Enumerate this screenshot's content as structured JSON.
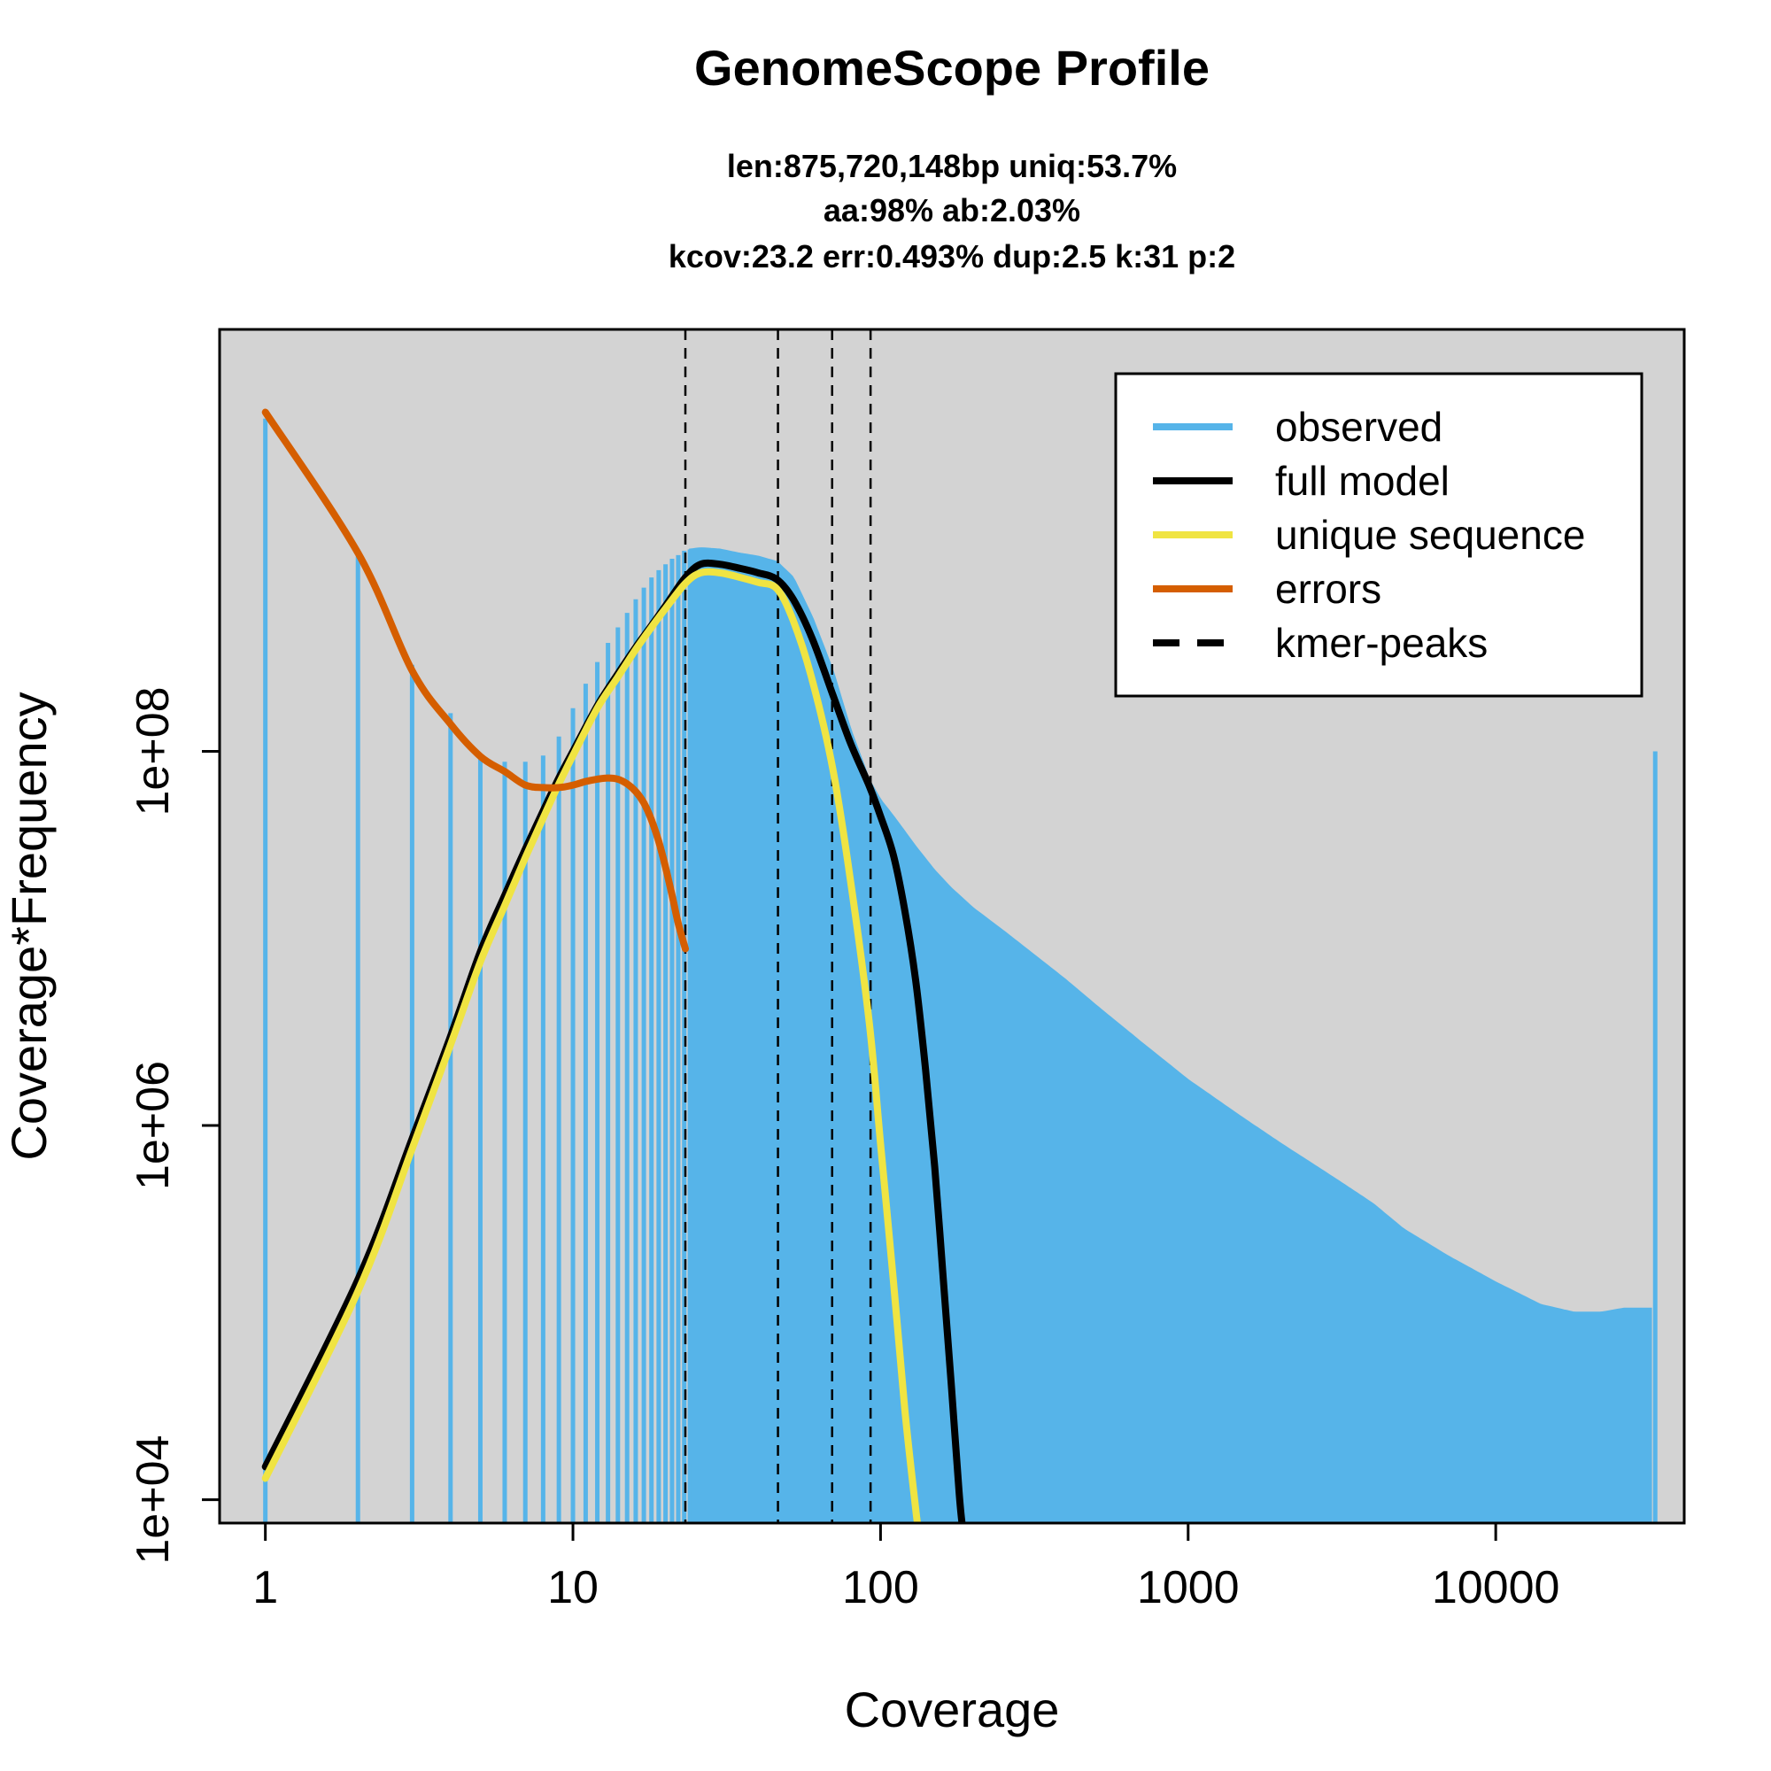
{
  "chart_data": {
    "type": "line",
    "title": "GenomeScope Profile",
    "subtitle_lines": [
      "len:875,720,148bp uniq:53.7%",
      "aa:98% ab:2.03%",
      "kcov:23.2 err:0.493%  dup:2.5  k:31 p:2"
    ],
    "xlabel": "Coverage",
    "ylabel": "Coverage*Frequency",
    "x_scale": "log",
    "y_scale": "log",
    "xlim": [
      0.71,
      41000
    ],
    "ylim": [
      7500,
      18000000000.0
    ],
    "x_ticks": [
      1,
      10,
      100,
      1000,
      10000
    ],
    "x_tick_labels": [
      "1",
      "10",
      "100",
      "1000",
      "10000"
    ],
    "y_ticks": [
      10000,
      1000000,
      100000000
    ],
    "y_tick_labels": [
      "1e+04",
      "1e+06",
      "1e+08"
    ],
    "plot_background": "#d3d3d3",
    "legend_position": "top-right",
    "legend": [
      {
        "label": "observed",
        "color": "#56b4e9",
        "style": "solid"
      },
      {
        "label": "full model",
        "color": "#000000",
        "style": "solid"
      },
      {
        "label": "unique sequence",
        "color": "#f0e442",
        "style": "solid"
      },
      {
        "label": "errors",
        "color": "#d55e00",
        "style": "solid"
      },
      {
        "label": "kmer-peaks",
        "color": "#000000",
        "style": "dashed"
      }
    ],
    "kmer_peaks": [
      23.2,
      46.4,
      69.6,
      92.8
    ],
    "series": [
      {
        "name": "observed",
        "kind": "histogram",
        "color": "#56b4e9",
        "x": [
          1,
          2,
          3,
          4,
          5,
          6,
          7,
          8,
          9,
          10,
          11,
          12,
          13,
          14,
          15,
          16,
          17,
          18,
          19,
          20,
          21,
          22,
          23,
          24,
          26,
          30,
          35,
          40,
          46,
          52,
          60,
          70,
          80,
          92,
          100,
          110,
          130,
          150,
          170,
          200,
          250,
          300,
          400,
          500,
          700,
          1000,
          1500,
          2000,
          3000,
          4000,
          5000,
          7000,
          10000,
          14000,
          18000,
          22000,
          26000,
          29000,
          32000,
          33000
        ],
        "y": [
          6000000000.0,
          1100000000.0,
          290000000.0,
          160000000.0,
          95000000.0,
          88000000.0,
          88000000.0,
          95000000.0,
          120000000.0,
          170000000.0,
          230000000.0,
          300000000.0,
          380000000.0,
          460000000.0,
          550000000.0,
          650000000.0,
          750000000.0,
          850000000.0,
          930000000.0,
          1000000000.0,
          1070000000.0,
          1120000000.0,
          1180000000.0,
          1200000000.0,
          1220000000.0,
          1200000000.0,
          1140000000.0,
          1100000000.0,
          1030000000.0,
          850000000.0,
          520000000.0,
          270000000.0,
          130000000.0,
          70000000.0,
          55000000.0,
          45000000.0,
          31000000.0,
          23000000.0,
          18500000.0,
          14500000.0,
          11000000.0,
          8700000.0,
          6000000.0,
          4400000.0,
          2800000.0,
          1750000.0,
          1100000.0,
          800000.0,
          520000.0,
          380000.0,
          280000.0,
          200000.0,
          145000.0,
          110000.0,
          100000.0,
          100000.0,
          105000.0,
          105000.0,
          105000.0,
          100000000.0
        ]
      },
      {
        "name": "full model",
        "kind": "line",
        "color": "#000000",
        "x": [
          1,
          2,
          3,
          4,
          5,
          6,
          7,
          8,
          9,
          10,
          12,
          14,
          16,
          18,
          20,
          23.2,
          26,
          30,
          35,
          40,
          46,
          52,
          60,
          70,
          80,
          92,
          100,
          110,
          120,
          130,
          140,
          150,
          160,
          170,
          180,
          184
        ],
        "y": [
          15000,
          150000,
          850000,
          3000000,
          8500000,
          17000000,
          30000000,
          48000000,
          72000000,
          100000000,
          175000000,
          260000000,
          360000000,
          470000000,
          600000000,
          850000000,
          1000000000,
          1000000000,
          950000000,
          900000000,
          830000000,
          650000000,
          400000000,
          200000000,
          110000000,
          65000000,
          45000000,
          28000000,
          14000000,
          6000000,
          2000000,
          600000,
          150000,
          40000,
          11000,
          7500
        ]
      },
      {
        "name": "unique sequence",
        "kind": "line",
        "color": "#f0e442",
        "x": [
          1,
          2,
          3,
          4,
          5,
          6,
          7,
          8,
          9,
          10,
          12,
          14,
          16,
          18,
          20,
          23.2,
          26,
          30,
          35,
          40,
          46,
          52,
          60,
          70,
          80,
          92,
          100,
          110,
          120,
          130,
          132
        ],
        "y": [
          13000,
          130000,
          750000,
          2700000,
          7500000,
          15000000,
          27000000,
          44000000,
          67000000,
          95000000,
          170000000,
          250000000,
          350000000,
          460000000,
          580000000,
          790000000,
          900000000,
          900000000,
          850000000,
          800000000,
          740000000,
          500000000,
          240000000,
          80000000,
          20000000,
          3500000,
          800000,
          150000,
          30000,
          9000,
          7500
        ]
      },
      {
        "name": "errors",
        "kind": "line",
        "color": "#d55e00",
        "x": [
          1,
          2,
          3,
          4,
          5,
          6,
          7,
          8,
          9,
          10,
          11,
          12,
          13,
          14,
          15,
          16,
          17,
          18,
          19,
          20,
          21,
          22,
          23.2
        ],
        "y": [
          6500000000,
          1150000000,
          270000000,
          140000000,
          94000000,
          78000000,
          66000000,
          64000000,
          64000000,
          66000000,
          69000000,
          71000000,
          72000000,
          71000000,
          67000000,
          61000000,
          53000000,
          43000000,
          33000000,
          24000000,
          17000000,
          12000000,
          8800000
        ]
      }
    ]
  }
}
